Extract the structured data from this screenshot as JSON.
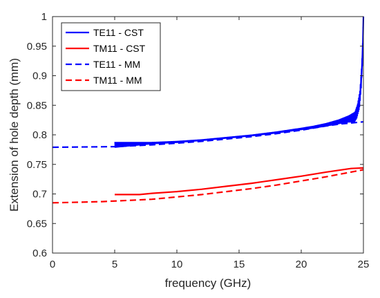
{
  "chart_data": {
    "type": "line",
    "xlabel": "frequency (GHz)",
    "ylabel": "Extension of hole depth (mm)",
    "xlim": [
      0,
      25
    ],
    "ylim": [
      0.6,
      1.0
    ],
    "xticks": [
      0,
      5,
      10,
      15,
      20,
      25
    ],
    "yticks": [
      0.6,
      0.65,
      0.7,
      0.75,
      0.8,
      0.85,
      0.9,
      0.95,
      1.0
    ],
    "xtick_labels": [
      "0",
      "5",
      "10",
      "15",
      "20",
      "25"
    ],
    "ytick_labels": [
      "0.6",
      "0.65",
      "0.7",
      "0.75",
      "0.8",
      "0.85",
      "0.9",
      "0.95",
      "1"
    ],
    "grid": false,
    "legend_position": "top-left",
    "series": [
      {
        "name": "TE11 - CST",
        "color": "#0000ff",
        "style": "solid",
        "x": [
          5.0,
          6.0,
          8.0,
          10.0,
          12.0,
          14.0,
          16.0,
          18.0,
          20.0,
          21.0,
          22.0,
          23.0,
          23.5,
          24.0,
          24.3,
          24.5,
          24.7,
          24.85,
          24.95,
          25.0
        ],
        "y": [
          0.783,
          0.784,
          0.786,
          0.788,
          0.791,
          0.795,
          0.799,
          0.804,
          0.81,
          0.813,
          0.817,
          0.822,
          0.825,
          0.828,
          0.83,
          0.84,
          0.86,
          0.9,
          0.95,
          1.0
        ]
      },
      {
        "name": "TM11 - CST",
        "color": "#ff0000",
        "style": "solid",
        "x": [
          5.0,
          7.0,
          8.0,
          10.0,
          12.0,
          14.0,
          16.0,
          18.0,
          20.0,
          22.0,
          23.0,
          24.0,
          25.0
        ],
        "y": [
          0.699,
          0.699,
          0.701,
          0.704,
          0.708,
          0.713,
          0.718,
          0.724,
          0.73,
          0.737,
          0.74,
          0.743,
          0.744
        ]
      },
      {
        "name": "TE11 - MM",
        "color": "#0000ff",
        "style": "dashed",
        "x": [
          0.0,
          5.0,
          8.0,
          10.0,
          12.0,
          14.0,
          16.0,
          18.0,
          20.0,
          22.0,
          23.0,
          24.0,
          25.0
        ],
        "y": [
          0.779,
          0.78,
          0.783,
          0.786,
          0.789,
          0.793,
          0.797,
          0.802,
          0.808,
          0.815,
          0.818,
          0.82,
          0.822
        ]
      },
      {
        "name": "TM11 - MM",
        "color": "#ff0000",
        "style": "dashed",
        "x": [
          0.0,
          2.0,
          4.0,
          6.0,
          8.0,
          10.0,
          12.0,
          14.0,
          16.0,
          18.0,
          20.0,
          22.0,
          24.0,
          25.0
        ],
        "y": [
          0.685,
          0.686,
          0.687,
          0.689,
          0.691,
          0.695,
          0.699,
          0.704,
          0.709,
          0.715,
          0.722,
          0.729,
          0.737,
          0.741
        ]
      }
    ],
    "ripple_band": {
      "series": "TE11 - CST",
      "x": [
        5.0,
        8.0,
        12.0,
        16.0,
        20.0,
        22.0,
        23.0,
        23.8,
        24.3,
        24.6,
        24.85,
        25.0
      ],
      "amplitude": [
        0.005,
        0.002,
        0.0015,
        0.0015,
        0.002,
        0.003,
        0.004,
        0.006,
        0.009,
        0.013,
        0.02,
        0.03
      ]
    }
  }
}
